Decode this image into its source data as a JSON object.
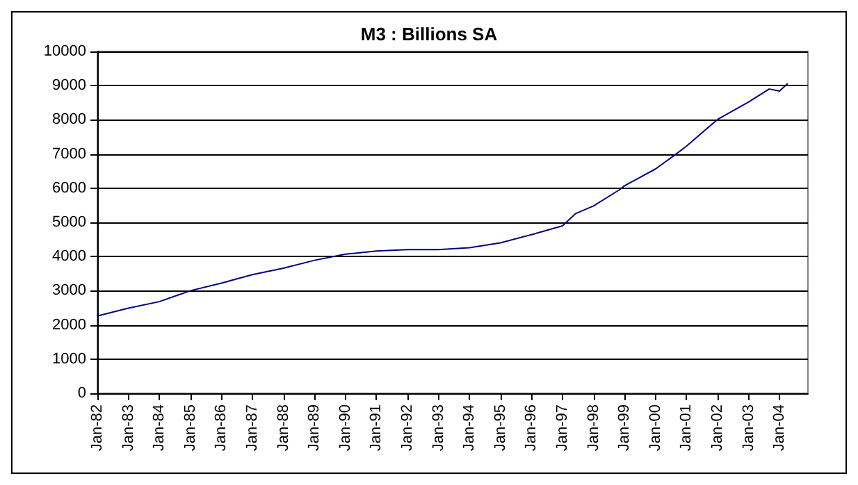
{
  "chart_data": {
    "type": "line",
    "title": "M3 : Billions SA",
    "x": [
      "1982-01",
      "1983-01",
      "1984-01",
      "1985-01",
      "1986-01",
      "1987-01",
      "1988-01",
      "1989-01",
      "1990-01",
      "1991-01",
      "1992-01",
      "1993-01",
      "1994-01",
      "1995-01",
      "1996-01",
      "1997-01",
      "1997-06",
      "1998-01",
      "1998-11",
      "1999-01",
      "2000-01",
      "2000-09",
      "2001-01",
      "2002-01",
      "2003-01",
      "2003-09",
      "2004-01",
      "2004-04"
    ],
    "series": [
      {
        "color": "#000080",
        "values": [
          2260,
          2490,
          2680,
          3000,
          3220,
          3470,
          3660,
          3890,
          4070,
          4160,
          4200,
          4200,
          4260,
          4400,
          4640,
          4900,
          5250,
          5480,
          5950,
          6070,
          6560,
          7000,
          7230,
          8010,
          8520,
          8900,
          8840,
          9050
        ]
      }
    ],
    "xlim": [
      "1982-01",
      "2004-12"
    ],
    "xticks": [
      {
        "value": "1982-01",
        "label": "Jan-82"
      },
      {
        "value": "1983-01",
        "label": "Jan-83"
      },
      {
        "value": "1984-01",
        "label": "Jan-84"
      },
      {
        "value": "1985-01",
        "label": "Jan-85"
      },
      {
        "value": "1986-01",
        "label": "Jan-86"
      },
      {
        "value": "1987-01",
        "label": "Jan-87"
      },
      {
        "value": "1988-01",
        "label": "Jan-88"
      },
      {
        "value": "1989-01",
        "label": "Jan-89"
      },
      {
        "value": "1990-01",
        "label": "Jan-90"
      },
      {
        "value": "1991-01",
        "label": "Jan-91"
      },
      {
        "value": "1992-01",
        "label": "Jan-92"
      },
      {
        "value": "1993-01",
        "label": "Jan-93"
      },
      {
        "value": "1994-01",
        "label": "Jan-94"
      },
      {
        "value": "1995-01",
        "label": "Jan-95"
      },
      {
        "value": "1996-01",
        "label": "Jan-96"
      },
      {
        "value": "1997-01",
        "label": "Jan-97"
      },
      {
        "value": "1998-01",
        "label": "Jan-98"
      },
      {
        "value": "1999-01",
        "label": "Jan-99"
      },
      {
        "value": "2000-01",
        "label": "Jan-00"
      },
      {
        "value": "2001-01",
        "label": "Jan-01"
      },
      {
        "value": "2002-01",
        "label": "Jan-02"
      },
      {
        "value": "2003-01",
        "label": "Jan-03"
      },
      {
        "value": "2004-01",
        "label": "Jan-04"
      }
    ],
    "ylim": [
      0,
      10000
    ],
    "yticks": [
      0,
      1000,
      2000,
      3000,
      4000,
      5000,
      6000,
      7000,
      8000,
      9000,
      10000
    ],
    "grid": "y",
    "marker": "none",
    "line_style": "solid"
  }
}
